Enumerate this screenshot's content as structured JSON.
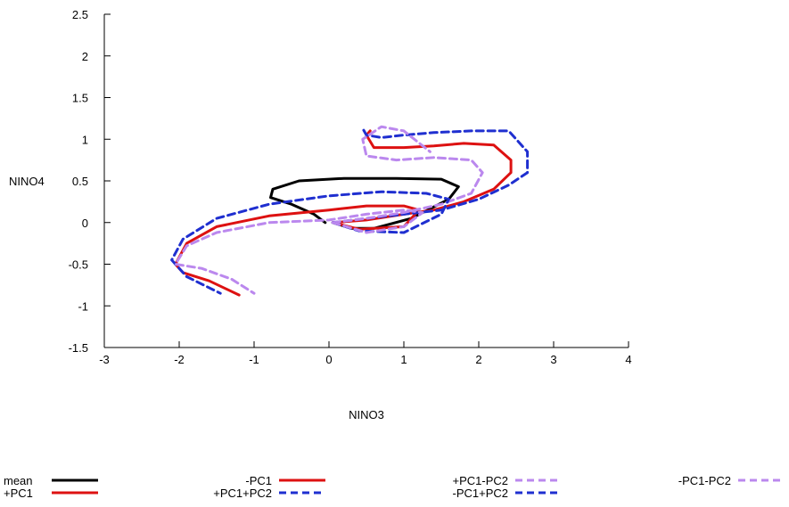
{
  "chart_data": {
    "type": "line",
    "xlabel": "NINO3",
    "ylabel": "NINO4",
    "xlim": [
      -3,
      4
    ],
    "ylim": [
      -1.5,
      2.5
    ],
    "xticks": [
      "-3",
      "-2",
      "-1",
      "0",
      "1",
      "2",
      "3",
      "4"
    ],
    "yticks": [
      "2.5",
      "2",
      "1.5",
      "1",
      "0.5",
      "0",
      "-0.5",
      "-1",
      "-1.5"
    ],
    "legend_placement": "bottom",
    "grid": false,
    "series": [
      {
        "name": "mean",
        "color": "#000000",
        "dash": "solid",
        "x": [
          -0.05,
          -0.2,
          -0.5,
          -0.78,
          -0.75,
          -0.4,
          0.2,
          0.9,
          1.5,
          1.73,
          1.6,
          1.1,
          0.6,
          0.3,
          0.05
        ],
        "y": [
          0.0,
          0.1,
          0.22,
          0.3,
          0.4,
          0.5,
          0.53,
          0.53,
          0.52,
          0.43,
          0.28,
          0.05,
          -0.07,
          -0.07,
          0.0
        ]
      },
      {
        "name": "+PC1",
        "color": "#dd1111",
        "dash": "solid",
        "x": [
          0.05,
          0.5,
          1.0,
          1.4,
          1.8,
          2.2,
          2.43,
          2.43,
          2.2,
          1.8,
          1.4,
          1.0,
          0.6,
          0.5,
          0.55
        ],
        "y": [
          0.0,
          0.03,
          0.1,
          0.15,
          0.25,
          0.4,
          0.6,
          0.75,
          0.93,
          0.95,
          0.92,
          0.9,
          0.9,
          1.05,
          1.1
        ]
      },
      {
        "name": "-PC1",
        "color": "#dd1111",
        "dash": "solid",
        "x": [
          0.05,
          0.4,
          1.0,
          1.2,
          1.0,
          0.5,
          0.0,
          -0.8,
          -1.5,
          -1.9,
          -2.05,
          -1.95,
          -1.6,
          -1.2
        ],
        "y": [
          0.0,
          -0.08,
          -0.05,
          0.15,
          0.2,
          0.2,
          0.15,
          0.08,
          -0.05,
          -0.25,
          -0.5,
          -0.6,
          -0.7,
          -0.87
        ]
      },
      {
        "name": "+PC1+PC2",
        "color": "#1f2fd0",
        "dash": "dashed",
        "x": [
          0.05,
          0.5,
          1.0,
          1.5,
          2.0,
          2.4,
          2.65,
          2.65,
          2.4,
          1.9,
          1.4,
          1.0,
          0.7,
          0.5,
          0.45
        ],
        "y": [
          0.0,
          0.05,
          0.1,
          0.15,
          0.28,
          0.45,
          0.6,
          0.85,
          1.1,
          1.1,
          1.08,
          1.05,
          1.02,
          1.05,
          1.13
        ]
      },
      {
        "name": "+PC1-PC2",
        "color": "#bb88ee",
        "dash": "dashed",
        "x": [
          0.05,
          0.5,
          1.0,
          1.5,
          1.9,
          2.05,
          1.9,
          1.4,
          0.9,
          0.5,
          0.45,
          0.7,
          1.0,
          1.35
        ],
        "y": [
          0.0,
          0.05,
          0.12,
          0.22,
          0.35,
          0.6,
          0.75,
          0.78,
          0.75,
          0.8,
          1.0,
          1.15,
          1.1,
          0.85
        ]
      },
      {
        "name": "-PC1+PC2",
        "color": "#1f2fd0",
        "dash": "dashed",
        "x": [
          0.05,
          0.4,
          1.0,
          1.5,
          1.6,
          1.3,
          0.7,
          0.0,
          -0.8,
          -1.5,
          -1.95,
          -2.1,
          -1.9,
          -1.45
        ],
        "y": [
          0.0,
          -0.1,
          -0.12,
          0.1,
          0.28,
          0.35,
          0.37,
          0.32,
          0.22,
          0.05,
          -0.2,
          -0.45,
          -0.65,
          -0.85
        ]
      },
      {
        "name": "-PC1-PC2",
        "color": "#bb88ee",
        "dash": "dashed",
        "x": [
          0.05,
          0.5,
          1.0,
          1.25,
          1.0,
          0.5,
          0.0,
          -0.8,
          -1.5,
          -1.9,
          -2.05,
          -1.7,
          -1.3,
          -1.0
        ],
        "y": [
          0.0,
          -0.12,
          -0.05,
          0.12,
          0.15,
          0.1,
          0.03,
          0.0,
          -0.12,
          -0.28,
          -0.5,
          -0.55,
          -0.68,
          -0.85
        ]
      }
    ]
  }
}
